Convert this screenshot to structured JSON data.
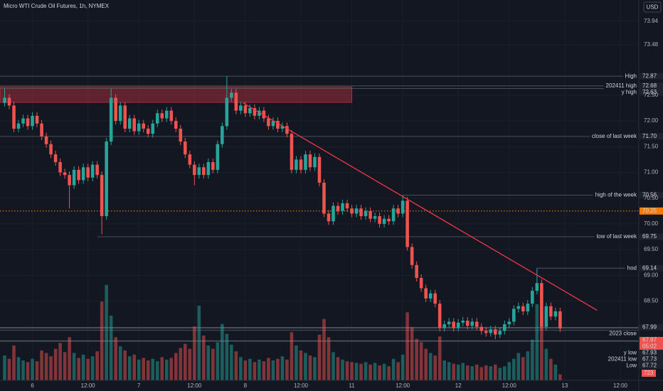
{
  "chart_data": {
    "type": "candlestick",
    "title": "Micro WTI Crude Oil Futures, 1h, NYMEX",
    "currency": "USD",
    "x": [
      0,
      1,
      2,
      3,
      4,
      5,
      6,
      7,
      8,
      9,
      10,
      11,
      12,
      13,
      14,
      15,
      16,
      17,
      18,
      19,
      20,
      21,
      22,
      23,
      24,
      25,
      26,
      27,
      28,
      29,
      30,
      31,
      32,
      33,
      34,
      35,
      36,
      37,
      38,
      39,
      40,
      41,
      42,
      43,
      44,
      45,
      46,
      47,
      48,
      49,
      50,
      51,
      52,
      53,
      54,
      55,
      56,
      57,
      58,
      59,
      60,
      61,
      62,
      63,
      64,
      65,
      66,
      67,
      68,
      69,
      70,
      71,
      72,
      73,
      74,
      75,
      76,
      77,
      78,
      79,
      80,
      81,
      82,
      83,
      84,
      85,
      86,
      87,
      88,
      89,
      90,
      91,
      92,
      93,
      94,
      95,
      96,
      97,
      98,
      99,
      100,
      101,
      102,
      103,
      104,
      105,
      106,
      107,
      108,
      109,
      110,
      111,
      112,
      113,
      114,
      115,
      116,
      117,
      118,
      119,
      120
    ],
    "open": [
      72.35,
      72.45,
      72.3,
      71.85,
      71.95,
      72.05,
      71.9,
      72.1,
      71.95,
      71.7,
      71.55,
      71.35,
      71.2,
      71.0,
      70.95,
      70.75,
      71.05,
      70.85,
      71.1,
      70.9,
      71.15,
      70.95,
      70.15,
      71.6,
      72.45,
      72.0,
      72.3,
      71.85,
      72.05,
      71.8,
      71.95,
      71.85,
      71.75,
      71.95,
      72.15,
      72.05,
      72.2,
      72.0,
      71.85,
      71.6,
      71.35,
      71.15,
      70.95,
      71.1,
      70.95,
      71.2,
      71.05,
      71.55,
      71.9,
      72.45,
      72.55,
      72.2,
      72.3,
      72.15,
      72.25,
      72.1,
      72.2,
      72.05,
      71.9,
      72.0,
      71.85,
      71.9,
      71.75,
      71.05,
      71.25,
      71.05,
      71.35,
      71.1,
      71.3,
      70.8,
      70.2,
      70.05,
      70.35,
      70.25,
      70.4,
      70.3,
      70.2,
      70.3,
      70.15,
      70.25,
      70.1,
      70.15,
      70.0,
      70.1,
      70.05,
      70.3,
      70.2,
      70.45,
      69.55,
      69.2,
      68.95,
      68.75,
      68.55,
      68.65,
      68.45,
      67.98,
      68.05,
      68.1,
      67.98,
      68.08,
      68.12,
      68.02,
      68.1,
      68.0,
      67.92,
      67.88,
      67.95,
      67.85,
      67.92,
      68.05,
      68.1,
      68.35,
      68.4,
      68.3,
      68.45,
      68.7,
      68.85,
      68.0,
      68.4,
      68.2,
      68.3
    ],
    "high": [
      72.63,
      72.52,
      72.37,
      72.02,
      72.12,
      72.12,
      72.17,
      72.17,
      72.02,
      71.77,
      71.62,
      71.42,
      71.27,
      71.07,
      71.02,
      71.12,
      71.12,
      71.17,
      71.17,
      71.22,
      71.22,
      71.02,
      71.67,
      72.63,
      72.52,
      72.37,
      72.37,
      72.12,
      72.12,
      72.02,
      72.02,
      71.92,
      72.02,
      72.22,
      72.22,
      72.27,
      72.27,
      72.07,
      71.92,
      71.67,
      71.42,
      71.22,
      71.17,
      71.17,
      71.27,
      71.27,
      71.62,
      71.97,
      72.87,
      72.62,
      72.62,
      72.37,
      72.37,
      72.32,
      72.32,
      72.27,
      72.27,
      72.12,
      72.07,
      72.07,
      71.97,
      71.97,
      71.82,
      71.32,
      71.32,
      71.42,
      71.42,
      71.37,
      71.37,
      70.87,
      70.27,
      70.42,
      70.42,
      70.47,
      70.47,
      70.37,
      70.37,
      70.37,
      70.32,
      70.32,
      70.22,
      70.22,
      70.17,
      70.17,
      70.37,
      70.37,
      70.56,
      70.52,
      69.62,
      69.27,
      69.02,
      68.82,
      68.72,
      68.72,
      68.52,
      68.12,
      68.17,
      68.17,
      68.15,
      68.19,
      68.19,
      68.17,
      68.17,
      68.07,
      67.99,
      68.02,
      68.02,
      67.99,
      68.12,
      68.17,
      68.42,
      68.47,
      68.47,
      68.52,
      68.77,
      69.14,
      68.92,
      68.47,
      68.47,
      68.37,
      68.37
    ],
    "low": [
      72.28,
      72.23,
      71.78,
      71.78,
      71.88,
      71.83,
      71.83,
      71.88,
      71.63,
      71.48,
      71.28,
      71.13,
      70.93,
      70.88,
      70.3,
      70.68,
      70.78,
      70.78,
      70.83,
      70.83,
      70.88,
      69.8,
      70.08,
      71.53,
      71.93,
      71.93,
      71.78,
      71.78,
      71.73,
      71.73,
      71.78,
      71.68,
      71.68,
      71.88,
      71.98,
      71.98,
      71.93,
      71.78,
      71.53,
      71.28,
      71.08,
      70.75,
      70.88,
      70.88,
      70.88,
      70.98,
      70.98,
      71.48,
      71.83,
      72.38,
      72.13,
      72.13,
      72.08,
      72.08,
      72.03,
      72.03,
      71.98,
      71.83,
      71.83,
      71.78,
      71.78,
      71.68,
      70.98,
      70.98,
      70.98,
      70.98,
      71.03,
      71.03,
      70.73,
      70.13,
      69.98,
      69.98,
      70.18,
      70.18,
      70.23,
      70.13,
      70.13,
      70.08,
      70.08,
      70.03,
      70.03,
      69.93,
      69.93,
      69.98,
      69.98,
      70.13,
      70.13,
      69.48,
      69.13,
      68.88,
      68.68,
      68.48,
      68.48,
      68.38,
      67.91,
      67.91,
      67.98,
      67.91,
      67.91,
      68.01,
      67.95,
      67.95,
      67.93,
      67.85,
      67.81,
      67.81,
      67.76,
      67.78,
      67.85,
      67.98,
      68.03,
      68.28,
      68.23,
      68.23,
      68.38,
      68.63,
      67.93,
      67.93,
      68.13,
      68.13,
      67.9
    ],
    "close": [
      72.45,
      72.3,
      71.85,
      71.95,
      72.05,
      71.9,
      72.1,
      71.95,
      71.7,
      71.55,
      71.35,
      71.2,
      71.0,
      70.95,
      70.75,
      71.05,
      70.85,
      71.1,
      70.9,
      71.15,
      70.95,
      70.15,
      71.6,
      72.45,
      72.0,
      72.3,
      71.85,
      72.05,
      71.8,
      71.95,
      71.85,
      71.75,
      71.95,
      72.15,
      72.05,
      72.2,
      72.0,
      71.85,
      71.6,
      71.35,
      71.15,
      70.95,
      71.1,
      70.95,
      71.2,
      71.05,
      71.55,
      71.9,
      72.45,
      72.55,
      72.2,
      72.3,
      72.15,
      72.25,
      72.1,
      72.2,
      72.05,
      71.9,
      72.0,
      71.85,
      71.9,
      71.75,
      71.05,
      71.25,
      71.05,
      71.35,
      71.1,
      71.3,
      70.8,
      70.2,
      70.05,
      70.35,
      70.25,
      70.4,
      70.3,
      70.2,
      70.3,
      70.15,
      70.25,
      70.1,
      70.15,
      70.0,
      70.1,
      70.05,
      70.3,
      70.2,
      70.45,
      69.55,
      69.2,
      68.95,
      68.75,
      68.55,
      68.65,
      68.45,
      67.98,
      68.05,
      68.1,
      67.98,
      68.08,
      68.12,
      68.02,
      68.1,
      68.0,
      67.92,
      67.88,
      67.95,
      67.85,
      67.92,
      68.05,
      68.1,
      68.35,
      68.4,
      68.3,
      68.45,
      68.7,
      68.85,
      68.0,
      68.4,
      68.2,
      68.3,
      67.97
    ],
    "volume": {
      "axis": "y2",
      "values": [
        3000,
        2600,
        4200,
        2800,
        2400,
        2200,
        2600,
        2300,
        3600,
        3300,
        2900,
        3800,
        4500,
        3400,
        5200,
        3300,
        2700,
        3100,
        2600,
        2900,
        3500,
        9500,
        11500,
        7800,
        5200,
        4100,
        3600,
        2900,
        3100,
        2500,
        2700,
        2400,
        2600,
        2300,
        2800,
        2500,
        2700,
        3300,
        3900,
        4400,
        3800,
        6500,
        9000,
        5400,
        4200,
        3800,
        4600,
        6800,
        5600,
        4300,
        3500,
        2800,
        2400,
        2600,
        2200,
        2500,
        2300,
        2700,
        2400,
        2600,
        2900,
        2500,
        5800,
        4200,
        3600,
        3300,
        3000,
        2800,
        5500,
        7400,
        5200,
        3400,
        2800,
        2500,
        2300,
        2200,
        2100,
        2000,
        2200,
        1900,
        2100,
        1800,
        2000,
        1700,
        2600,
        2200,
        3100,
        8200,
        6400,
        5000,
        4600,
        3800,
        3300,
        3000,
        5300,
        2400,
        2200,
        2000,
        1900,
        2100,
        1800,
        1700,
        1900,
        1600,
        1800,
        1700,
        1900,
        1500,
        1700,
        2200,
        2600,
        3300,
        2800,
        3500,
        4900,
        9200,
        8600,
        3800,
        2600,
        1900,
        723
      ]
    },
    "up_color": "#26a69a",
    "down_color": "#ef5350",
    "xlim": [
      -1,
      137
    ],
    "xticks": [
      {
        "value": 6,
        "label": "6"
      },
      {
        "value": 18,
        "label": "12:00"
      },
      {
        "value": 29,
        "label": "7"
      },
      {
        "value": 41,
        "label": "12:00"
      },
      {
        "value": 52,
        "label": "8"
      },
      {
        "value": 64,
        "label": "12:00"
      },
      {
        "value": 75,
        "label": "11"
      },
      {
        "value": 86,
        "label": "12:00"
      },
      {
        "value": 98,
        "label": "12"
      },
      {
        "value": 109,
        "label": "12:00"
      },
      {
        "value": 121,
        "label": "13"
      },
      {
        "value": 133,
        "label": "12:00"
      }
    ],
    "ylim": [
      66.96,
      74.35
    ],
    "yticks": [
      {
        "value": 73.94,
        "label": "73.94"
      },
      {
        "value": 73.48,
        "label": "73.48"
      },
      {
        "value": 72.5,
        "label": "72.50"
      },
      {
        "value": 72,
        "label": "72.00"
      },
      {
        "value": 71.5,
        "label": "71.50"
      },
      {
        "value": 71,
        "label": "71.00"
      },
      {
        "value": 70.5,
        "label": "70.50"
      },
      {
        "value": 70,
        "label": "70.00"
      },
      {
        "value": 69.5,
        "label": "69.50"
      },
      {
        "value": 69,
        "label": "69.00"
      },
      {
        "value": 68.5,
        "label": "68.50"
      }
    ],
    "y2lim": [
      0,
      12000
    ],
    "grid": true,
    "levels": [
      {
        "name": "High",
        "value": 72.87,
        "label": "72.87"
      },
      {
        "name": "202411 high",
        "value": 72.68,
        "label": "72.68"
      },
      {
        "name": "y high",
        "value": 72.63,
        "label": "72.63"
      },
      {
        "name": "close of last week",
        "value": 71.7,
        "label": "71.70"
      },
      {
        "name": "high of the week",
        "value": 70.56,
        "label": "70.56",
        "x": 86
      },
      {
        "name": "low of last week",
        "value": 69.75,
        "label": "69.75",
        "x": 20
      },
      {
        "name": "hod",
        "value": 69.14,
        "label": "69.14",
        "x": 115
      },
      {
        "value": 67.99,
        "label": "67.99"
      },
      {
        "name": "2023 close",
        "value": 67.97
      },
      {
        "name": "y low",
        "value": 67.93,
        "label": "67.93"
      },
      {
        "name": "202411 low",
        "value": 67.73,
        "label": "67.73"
      },
      {
        "name": "Low",
        "value": 67.72,
        "label": "67.72"
      }
    ],
    "zone": {
      "x": [
        -1,
        75
      ],
      "y": [
        72.36,
        72.66
      ]
    },
    "trendline": {
      "x": [
        51.5,
        128
      ],
      "y": [
        72.35,
        68.32
      ]
    },
    "reference_line": {
      "value": 70.25,
      "label": "70.25",
      "color": "#f57c00"
    },
    "last_price": {
      "countdown": "05:02"
    }
  }
}
